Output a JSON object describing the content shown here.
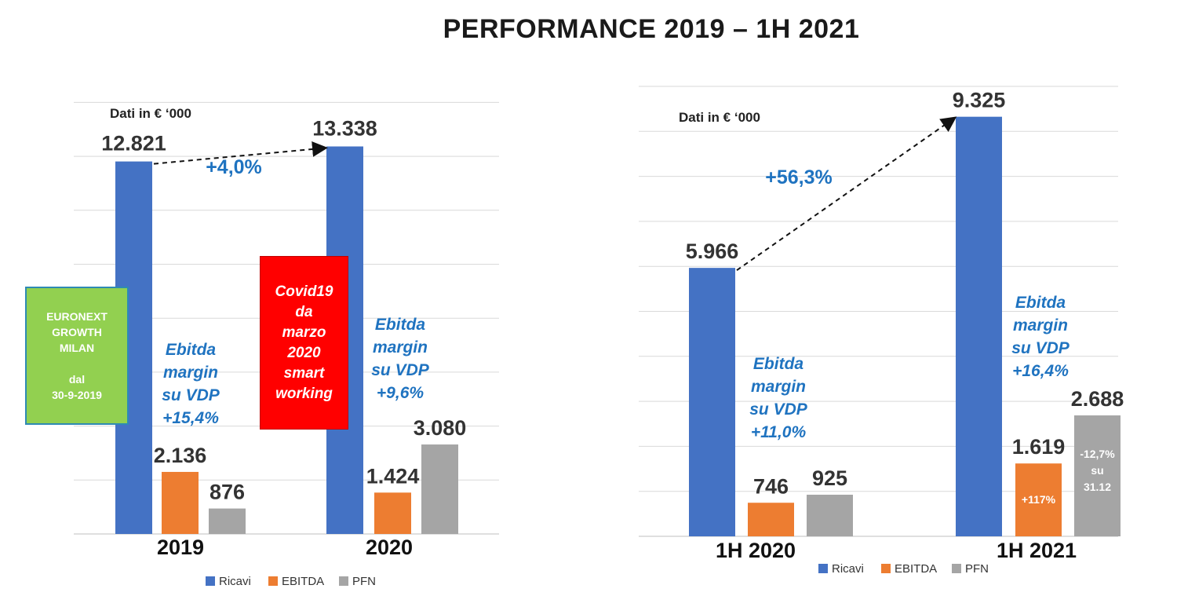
{
  "title": "PERFORMANCE 2019 – 1H 2021",
  "colors": {
    "ricavi": "#4472c4",
    "ebitda": "#ed7d31",
    "pfn": "#a5a5a5",
    "accent": "#1f73c0",
    "green_box": "#92d050",
    "red_box": "#ff0000"
  },
  "chart_data": [
    {
      "type": "bar",
      "note": "Dati in € ‘000",
      "categories": [
        "2019",
        "2020"
      ],
      "series": [
        {
          "name": "Ricavi",
          "values": [
            12821,
            13338
          ],
          "labels": [
            "12.821",
            "13.338"
          ]
        },
        {
          "name": "EBITDA",
          "values": [
            2136,
            1424
          ],
          "labels": [
            "2.136",
            "1.424"
          ]
        },
        {
          "name": "PFN",
          "values": [
            876,
            3080
          ],
          "labels": [
            "876",
            "3.080"
          ]
        }
      ],
      "ylim": [
        0,
        15000
      ],
      "growth_label": "+4,0%",
      "margins": [
        [
          "Ebitda",
          "margin",
          "su VDP",
          "+15,4%"
        ],
        [
          "Ebitda",
          "margin",
          "su VDP",
          "+9,6%"
        ]
      ],
      "legend": [
        "Ricavi",
        "EBITDA",
        "PFN"
      ]
    },
    {
      "type": "bar",
      "note": "Dati in € ‘000",
      "categories": [
        "1H 2020",
        "1H 2021"
      ],
      "series": [
        {
          "name": "Ricavi",
          "values": [
            5966,
            9325
          ],
          "labels": [
            "5.966",
            "9.325"
          ]
        },
        {
          "name": "EBITDA",
          "values": [
            746,
            1619
          ],
          "labels": [
            "746",
            "1.619"
          ]
        },
        {
          "name": "PFN",
          "values": [
            925,
            2688
          ],
          "labels": [
            "925",
            "2.688"
          ]
        }
      ],
      "ylim": [
        0,
        10000
      ],
      "growth_label": "+56,3%",
      "margins": [
        [
          "Ebitda",
          "margin",
          "su VDP",
          "+11,0%"
        ],
        [
          "Ebitda",
          "margin",
          "su VDP",
          "+16,4%"
        ]
      ],
      "inner_labels": {
        "ebitda_2021": "+117%",
        "pfn_2021": [
          "-12,7%",
          "su",
          "31.12"
        ]
      },
      "legend": [
        "Ricavi",
        "EBITDA",
        "PFN"
      ]
    }
  ],
  "boxes": {
    "euronext": [
      "EURONEXT",
      "GROWTH",
      "MILAN",
      "",
      "dal",
      "30-9-2019"
    ],
    "covid": [
      "Covid19",
      "da",
      "marzo",
      "2020",
      "smart",
      "working"
    ]
  }
}
